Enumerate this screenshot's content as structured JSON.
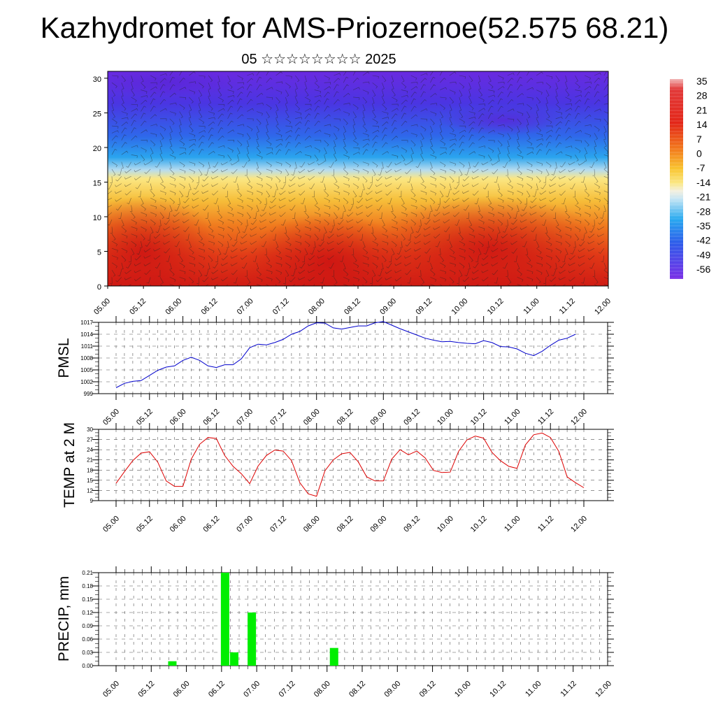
{
  "title": "Kazhydromet for AMS-Priozernoe(52.575 68.21)",
  "subtitle": "05 ☆☆☆☆☆☆☆☆ 2025",
  "time_labels": [
    "05.00",
    "05.12",
    "06.00",
    "06.12",
    "07.00",
    "07.12",
    "08.00",
    "08.12",
    "09.00",
    "09.12",
    "10.00",
    "10.12",
    "11.00",
    "11.12",
    "12.00"
  ],
  "chart_data": [
    {
      "type": "heatmap",
      "name": "cross-section",
      "x_ticks": [
        "05.00",
        "05.12",
        "06.00",
        "06.12",
        "07.00",
        "07.12",
        "08.00",
        "08.12",
        "09.00",
        "09.12",
        "10.00",
        "10.12",
        "11.00",
        "11.12",
        "12.00"
      ],
      "y_ticks": [
        0,
        5,
        10,
        15,
        20,
        25,
        30
      ],
      "ylim": [
        0,
        31
      ],
      "colorbar_labels": [
        "35",
        "28",
        "21",
        "14",
        "7",
        "0",
        "-7",
        "-14",
        "-21",
        "-28",
        "-35",
        "-42",
        "-49",
        "-56"
      ],
      "colors": {
        "hot": "#d61a14",
        "warm": "#f07a1e",
        "yellow": "#fbe783",
        "cyan": "#36b8ee",
        "blue": "#2d5cea",
        "violet": "#6a2ae0"
      },
      "overlay": "wind barbs"
    },
    {
      "type": "line",
      "ylabel": "PMSL",
      "ylim": [
        999,
        1017
      ],
      "y_ticks": [
        999,
        1002,
        1005,
        1008,
        1011,
        1014,
        1017
      ],
      "x_ticks": [
        "05.00",
        "05.12",
        "06.00",
        "06.12",
        "07.00",
        "07.12",
        "08.00",
        "08.12",
        "09.00",
        "09.12",
        "10.00",
        "10.12",
        "11.00",
        "11.12",
        "12.00"
      ],
      "x_step_hours": 3,
      "color": "#0000cc",
      "values": [
        1000.5,
        1001.6,
        1002.1,
        1002.3,
        1003.6,
        1004.9,
        1005.7,
        1006.0,
        1007.4,
        1008.2,
        1007.4,
        1006.0,
        1005.6,
        1006.3,
        1006.3,
        1007.8,
        1010.6,
        1011.5,
        1011.3,
        1011.9,
        1012.7,
        1014.0,
        1014.7,
        1016.1,
        1016.9,
        1016.8,
        1015.6,
        1015.3,
        1015.7,
        1016.1,
        1016.1,
        1016.9,
        1017.2,
        1016.3,
        1015.4,
        1014.6,
        1013.8,
        1013.0,
        1012.5,
        1012.1,
        1012.2,
        1011.9,
        1011.7,
        1011.6,
        1012.4,
        1011.9,
        1010.9,
        1010.8,
        1010.3,
        1009.2,
        1008.6,
        1009.7,
        1011.2,
        1012.5,
        1013.0,
        1014.0
      ]
    },
    {
      "type": "line",
      "ylabel": "TEMP at 2 M",
      "ylim": [
        9,
        30
      ],
      "y_ticks": [
        9,
        12,
        15,
        18,
        21,
        24,
        27,
        30
      ],
      "x_ticks": [
        "05.00",
        "05.12",
        "06.00",
        "06.12",
        "07.00",
        "07.12",
        "08.00",
        "08.12",
        "09.00",
        "09.12",
        "10.00",
        "10.12",
        "11.00",
        "11.12",
        "12.00"
      ],
      "x_step_hours": 3,
      "color": "#dd0000",
      "values": [
        14.1,
        17.5,
        20.8,
        23.0,
        23.4,
        20.3,
        14.8,
        13.2,
        13.2,
        21.2,
        25.6,
        27.6,
        27.3,
        22.3,
        19.1,
        16.9,
        14.0,
        19.2,
        22.3,
        23.9,
        23.6,
        20.8,
        14.3,
        11.0,
        10.3,
        17.8,
        21.0,
        22.8,
        23.2,
        20.4,
        16.0,
        14.8,
        14.8,
        21.2,
        24.0,
        22.5,
        23.6,
        21.6,
        17.9,
        17.3,
        17.4,
        23.5,
        26.9,
        28.0,
        27.4,
        23.2,
        20.8,
        19.1,
        18.5,
        25.4,
        28.4,
        28.9,
        27.6,
        23.5,
        16.0,
        14.3,
        12.8
      ]
    },
    {
      "type": "bar",
      "ylabel": "PRECIP, mm",
      "ylim": [
        0,
        0.21
      ],
      "y_ticks": [
        "0.00",
        "0.03",
        "0.06",
        "0.09",
        "0.12",
        "0.15",
        "0.18",
        "0.21"
      ],
      "x_ticks": [
        "05.00",
        "05.12",
        "06.00",
        "06.12",
        "07.00",
        "07.12",
        "08.00",
        "08.12",
        "09.00",
        "09.12",
        "10.00",
        "10.12",
        "11.00",
        "11.12",
        "12.00"
      ],
      "x_step_hours": 3,
      "color": "#00ee00",
      "bars": [
        {
          "x": 0.8,
          "value": 0.01
        },
        {
          "x": 1.55,
          "value": 0.21
        },
        {
          "x": 1.68,
          "value": 0.03
        },
        {
          "x": 1.93,
          "value": 0.12
        },
        {
          "x": 3.1,
          "value": 0.04
        }
      ]
    }
  ]
}
